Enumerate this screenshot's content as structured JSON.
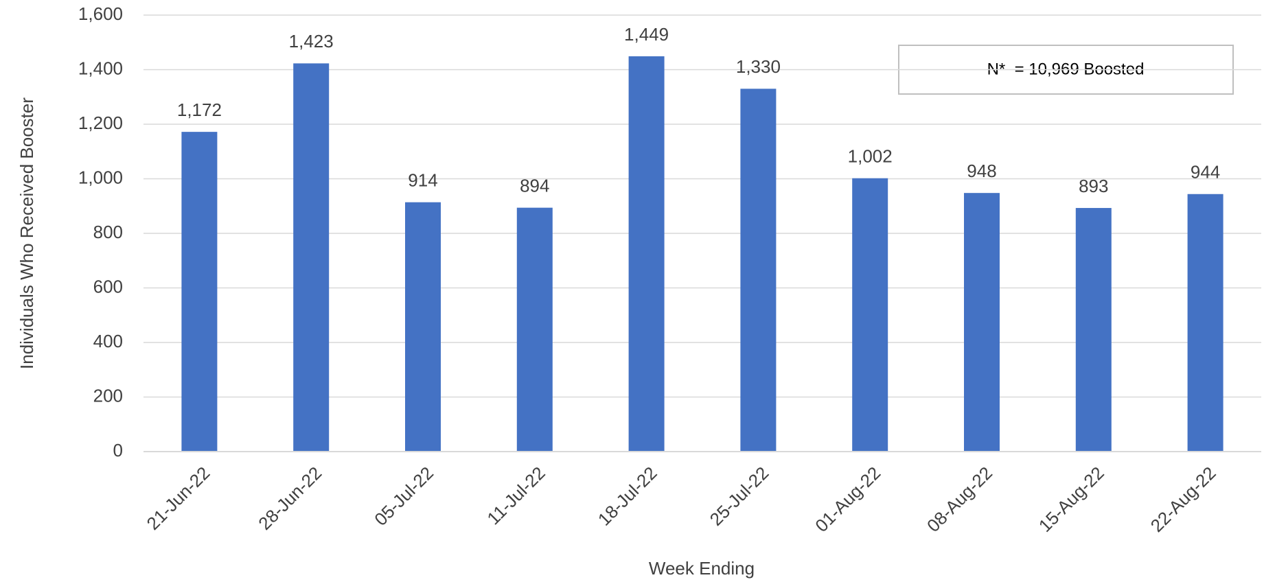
{
  "chart_data": {
    "type": "bar",
    "x_label": "Week Ending",
    "y_label": "Individuals Who Received Booster",
    "annotation": "N*  = 10,969 Boosted",
    "categories": [
      "21-Jun-22",
      "28-Jun-22",
      "05-Jul-22",
      "11-Jul-22",
      "18-Jul-22",
      "25-Jul-22",
      "01-Aug-22",
      "08-Aug-22",
      "15-Aug-22",
      "22-Aug-22"
    ],
    "values": [
      1172,
      1423,
      914,
      894,
      1449,
      1330,
      1002,
      948,
      893,
      944
    ],
    "value_labels": [
      "1,172",
      "1,423",
      "914",
      "894",
      "1,449",
      "1,330",
      "1,002",
      "948",
      "893",
      "944"
    ],
    "color": "#4472c4",
    "ylim": [
      0,
      1600
    ],
    "yticks": [
      0,
      200,
      400,
      600,
      800,
      {
        "value": 1000,
        "label": "1,000"
      },
      {
        "value": 1200,
        "label": "1,200"
      },
      {
        "value": 1400,
        "label": "1,400"
      },
      {
        "value": 1600,
        "label": "1,600"
      }
    ],
    "grid": true
  }
}
